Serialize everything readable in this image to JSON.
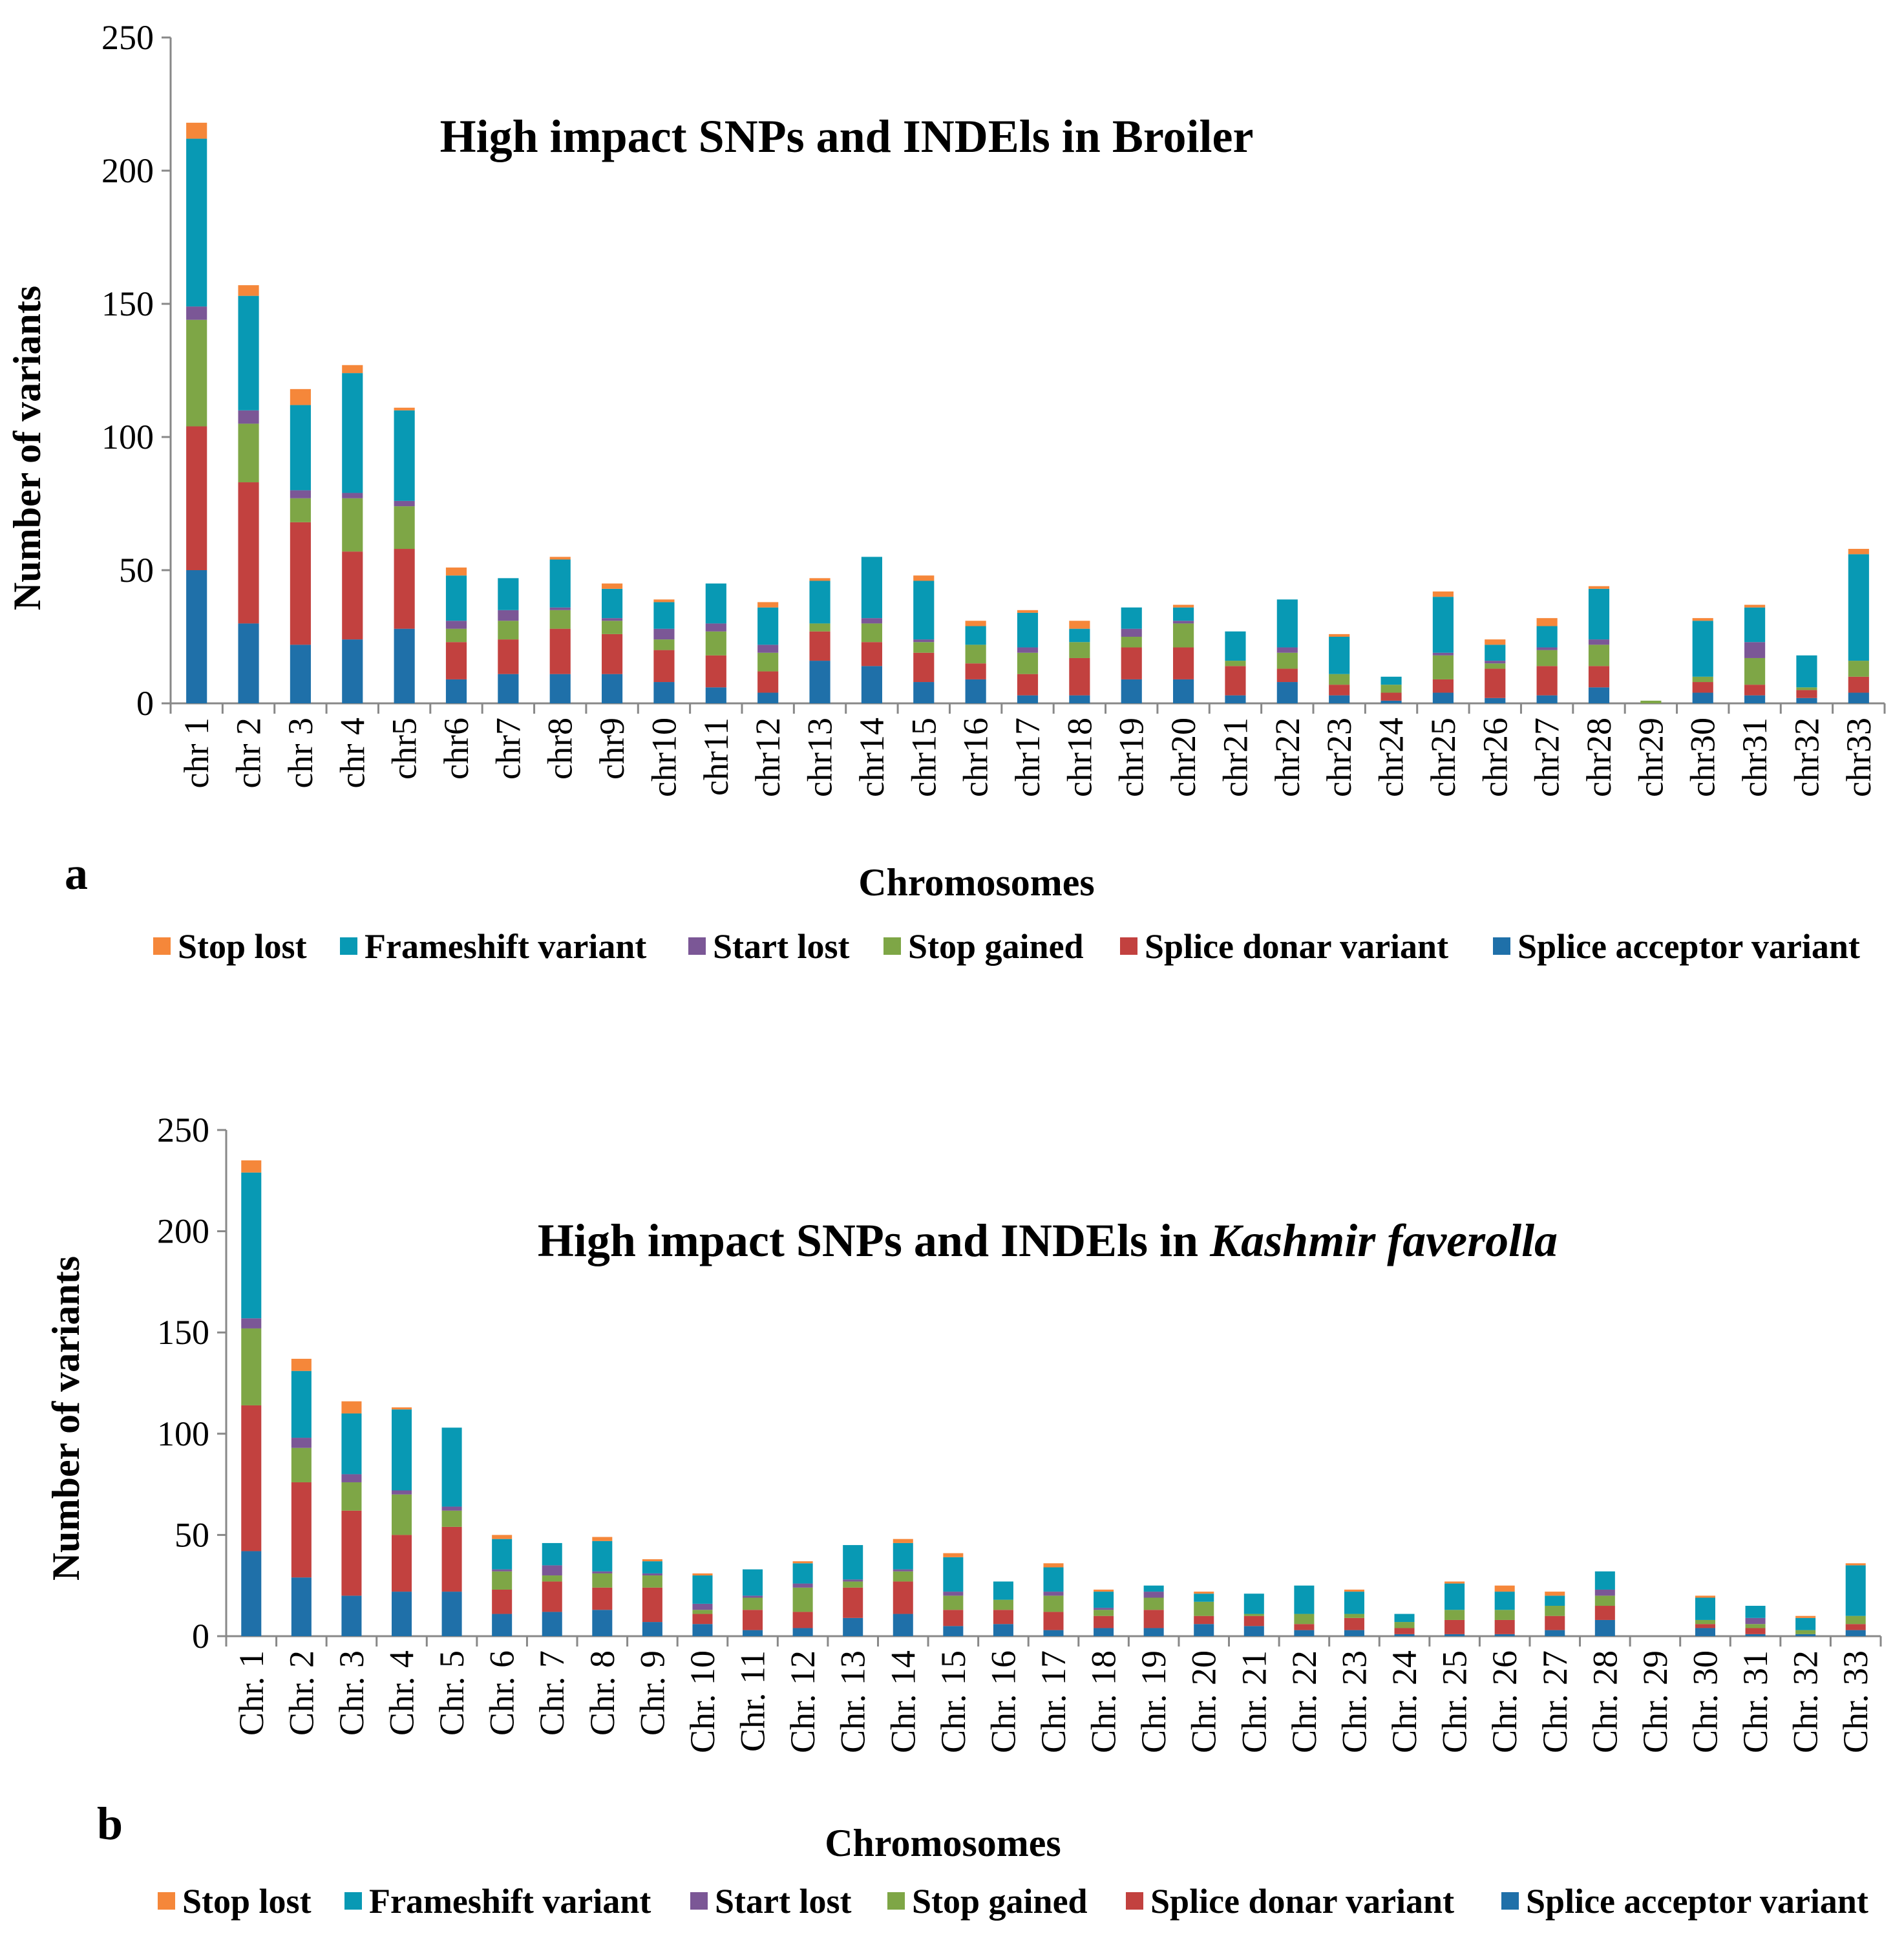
{
  "series_colors": {
    "Splice acceptor variant": "#1f70a9",
    "Splice donar variant": "#c2413f",
    "Stop gained": "#7ea646",
    "Start lost": "#7b5796",
    "Frameshift variant": "#0899b4",
    "Stop lost": "#f5873a"
  },
  "chart_data": [
    {
      "type": "bar",
      "stacked": true,
      "panel_label": "a",
      "title": "High impact SNPs and INDEls in Broiler",
      "title_italic": "",
      "xlabel": "Chromosomes",
      "ylabel": "Number of variants",
      "ylim": [
        0,
        250
      ],
      "yticks": [
        "0",
        "50",
        "100",
        "150",
        "200",
        "250"
      ],
      "legend_position": "bottom",
      "legend": [
        "Stop lost",
        "Frameshift variant",
        "Start lost",
        "Stop gained",
        "Splice donar variant",
        "Splice acceptor variant"
      ],
      "categories": [
        "chr 1",
        "chr 2",
        "chr 3",
        "chr 4",
        "chr5",
        "chr6",
        "chr7",
        "chr8",
        "chr9",
        "chr10",
        "chr11",
        "chr12",
        "chr13",
        "chr14",
        "chr15",
        "chr16",
        "chr17",
        "chr18",
        "chr19",
        "chr20",
        "chr21",
        "chr22",
        "chr23",
        "chr24",
        "chr25",
        "chr26",
        "chr27",
        "chr28",
        "chr29",
        "chr30",
        "chr31",
        "chr32",
        "chr33"
      ],
      "series": [
        {
          "name": "Splice acceptor variant",
          "values": [
            50,
            30,
            22,
            24,
            28,
            9,
            11,
            11,
            11,
            8,
            6,
            4,
            16,
            14,
            8,
            9,
            3,
            3,
            9,
            9,
            3,
            8,
            3,
            1,
            4,
            2,
            3,
            6,
            0,
            4,
            3,
            2,
            4
          ]
        },
        {
          "name": "Splice donar variant",
          "values": [
            54,
            53,
            46,
            33,
            30,
            14,
            13,
            17,
            15,
            12,
            12,
            8,
            11,
            9,
            11,
            6,
            8,
            14,
            12,
            12,
            11,
            5,
            4,
            3,
            5,
            11,
            11,
            8,
            0,
            4,
            4,
            3,
            6
          ]
        },
        {
          "name": "Stop gained",
          "values": [
            40,
            22,
            9,
            20,
            16,
            5,
            7,
            7,
            5,
            4,
            9,
            7,
            3,
            7,
            4,
            7,
            8,
            6,
            4,
            9,
            2,
            6,
            4,
            3,
            9,
            2,
            6,
            8,
            1,
            2,
            10,
            1,
            6
          ]
        },
        {
          "name": "Start lost",
          "values": [
            5,
            5,
            3,
            2,
            2,
            3,
            4,
            1,
            1,
            4,
            3,
            3,
            0,
            2,
            1,
            0,
            2,
            0,
            3,
            1,
            0,
            2,
            0,
            0,
            1,
            1,
            1,
            2,
            0,
            0,
            6,
            0,
            0
          ]
        },
        {
          "name": "Frameshift variant",
          "values": [
            63,
            43,
            32,
            45,
            34,
            17,
            12,
            18,
            11,
            10,
            15,
            14,
            16,
            23,
            22,
            7,
            13,
            5,
            8,
            5,
            11,
            18,
            14,
            3,
            21,
            6,
            8,
            19,
            0,
            21,
            13,
            12,
            40
          ]
        },
        {
          "name": "Stop lost",
          "values": [
            6,
            4,
            6,
            3,
            1,
            3,
            0,
            1,
            2,
            1,
            0,
            2,
            1,
            0,
            2,
            2,
            1,
            3,
            0,
            1,
            0,
            0,
            1,
            0,
            2,
            2,
            3,
            1,
            0,
            1,
            1,
            0,
            2
          ]
        }
      ]
    },
    {
      "type": "bar",
      "stacked": true,
      "panel_label": "b",
      "title": "High impact SNPs and INDEls in ",
      "title_italic": "Kashmir faverolla",
      "xlabel": "Chromosomes",
      "ylabel": "Number of variants",
      "ylim": [
        0,
        250
      ],
      "yticks": [
        "0",
        "50",
        "100",
        "150",
        "200",
        "250"
      ],
      "legend_position": "bottom",
      "legend": [
        "Stop lost",
        "Frameshift variant",
        "Start lost",
        "Stop gained",
        "Splice donar variant",
        "Splice acceptor variant"
      ],
      "categories": [
        "Chr. 1",
        "Chr. 2",
        "Chr. 3",
        "Chr. 4",
        "Chr. 5",
        "Chr. 6",
        "Chr. 7",
        "Chr. 8",
        "Chr. 9",
        "Chr. 10",
        "Chr. 11",
        "Chr. 12",
        "Chr. 13",
        "Chr. 14",
        "Chr. 15",
        "Chr. 16",
        "Chr. 17",
        "Chr. 18",
        "Chr. 19",
        "Chr. 20",
        "Chr. 21",
        "Chr. 22",
        "Chr. 23",
        "Chr. 24",
        "Chr. 25",
        "Chr. 26",
        "Chr. 27",
        "Chr. 28",
        "Chr. 29",
        "Chr. 30",
        "Chr. 31",
        "Chr. 32",
        "Chr. 33"
      ],
      "series": [
        {
          "name": "Splice acceptor variant",
          "values": [
            42,
            29,
            20,
            22,
            22,
            11,
            12,
            13,
            7,
            6,
            3,
            4,
            9,
            11,
            5,
            6,
            3,
            4,
            4,
            6,
            5,
            3,
            3,
            1,
            1,
            1,
            3,
            8,
            0,
            4,
            1,
            1,
            3
          ]
        },
        {
          "name": "Splice donar variant",
          "values": [
            72,
            47,
            42,
            28,
            32,
            12,
            15,
            11,
            17,
            5,
            10,
            8,
            15,
            16,
            8,
            7,
            9,
            6,
            9,
            4,
            5,
            3,
            6,
            3,
            7,
            7,
            7,
            7,
            0,
            2,
            3,
            0,
            3
          ]
        },
        {
          "name": "Stop gained",
          "values": [
            38,
            17,
            14,
            20,
            8,
            9,
            3,
            7,
            6,
            2,
            6,
            12,
            3,
            5,
            7,
            5,
            8,
            3,
            6,
            7,
            1,
            5,
            2,
            3,
            5,
            5,
            5,
            5,
            0,
            2,
            2,
            2,
            4
          ]
        },
        {
          "name": "Start lost",
          "values": [
            5,
            5,
            4,
            2,
            2,
            1,
            5,
            1,
            1,
            3,
            1,
            2,
            1,
            1,
            2,
            0,
            2,
            1,
            3,
            0,
            0,
            0,
            0,
            0,
            0,
            0,
            0,
            3,
            0,
            0,
            3,
            0,
            0
          ]
        },
        {
          "name": "Frameshift variant",
          "values": [
            72,
            33,
            30,
            40,
            39,
            15,
            11,
            15,
            6,
            14,
            13,
            10,
            17,
            13,
            17,
            9,
            12,
            8,
            3,
            4,
            10,
            14,
            11,
            4,
            13,
            9,
            5,
            9,
            0,
            11,
            6,
            6,
            25
          ]
        },
        {
          "name": "Stop lost",
          "values": [
            6,
            6,
            6,
            1,
            0,
            2,
            0,
            2,
            1,
            1,
            0,
            1,
            0,
            2,
            2,
            0,
            2,
            1,
            0,
            1,
            0,
            0,
            1,
            0,
            1,
            3,
            2,
            0,
            0,
            1,
            0,
            1,
            1
          ]
        }
      ]
    }
  ]
}
